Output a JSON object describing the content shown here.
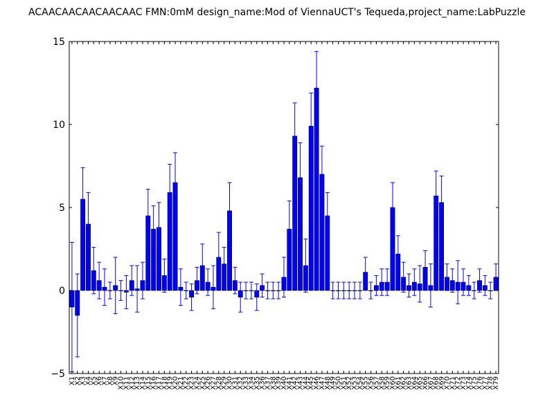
{
  "chart_data": {
    "type": "bar",
    "title": "ACAACAACAACAACAAC  FMN:0mM  design_name:Mod of ViennaUCT's Tequeda,project_name:LabPuzzle",
    "xlabel": "",
    "ylabel": "",
    "ylim": [
      -5,
      15
    ],
    "yticks": [
      -5,
      0,
      5,
      10,
      15
    ],
    "grid": false,
    "bar_color": "#0000ff",
    "error_color": "#0000ff",
    "categories": [
      "X1",
      "X2",
      "X3",
      "X4",
      "X5",
      "X6",
      "X7",
      "X8",
      "X9",
      "X10",
      "X11",
      "X12",
      "X13",
      "X14",
      "X15",
      "X16",
      "X17",
      "X18",
      "X19",
      "X20",
      "X21",
      "X22",
      "X23",
      "X24",
      "X25",
      "X26",
      "X27",
      "X28",
      "X29",
      "X30",
      "X31",
      "X32",
      "X33",
      "X34",
      "X35",
      "X36",
      "X37",
      "X38",
      "X39",
      "X40",
      "X41",
      "X42",
      "X43",
      "X44",
      "X45",
      "X46",
      "X47",
      "X48",
      "X49",
      "X50",
      "X51",
      "X52",
      "X53",
      "X54",
      "X55",
      "X56",
      "X57",
      "X58",
      "X59",
      "X60",
      "X61",
      "X62",
      "X63",
      "X64",
      "X65",
      "X66",
      "X67",
      "X68",
      "X69",
      "X70",
      "X71",
      "X72",
      "X73",
      "X74",
      "X75",
      "X76",
      "X77",
      "X78",
      "X79"
    ],
    "values": [
      -1.0,
      -1.5,
      5.5,
      4.0,
      1.2,
      0.6,
      0.2,
      0.0,
      0.3,
      0.0,
      -0.1,
      0.6,
      0.1,
      0.6,
      4.5,
      3.7,
      3.8,
      0.9,
      5.9,
      6.5,
      0.2,
      0.0,
      -0.4,
      0.6,
      1.5,
      0.5,
      0.2,
      2.0,
      1.6,
      4.8,
      0.6,
      -0.4,
      0.0,
      0.0,
      -0.4,
      0.3,
      0.0,
      0.0,
      0.0,
      0.8,
      3.7,
      9.3,
      6.8,
      1.5,
      9.9,
      12.2,
      7.0,
      4.5,
      0.0,
      0.0,
      0.0,
      0.0,
      0.0,
      0.0,
      1.1,
      0.0,
      0.3,
      0.5,
      0.5,
      5.0,
      2.2,
      0.8,
      0.3,
      0.5,
      0.4,
      1.4,
      0.3,
      5.7,
      5.3,
      0.8,
      0.6,
      0.5,
      0.5,
      0.3,
      0.0,
      0.6,
      0.3,
      0.0,
      0.8
    ],
    "errors": [
      3.9,
      2.5,
      1.9,
      1.9,
      1.4,
      1.1,
      1.1,
      0.5,
      1.7,
      0.6,
      1.0,
      0.9,
      1.4,
      1.1,
      1.6,
      1.4,
      1.5,
      1.0,
      1.7,
      1.8,
      1.1,
      0.5,
      0.8,
      0.8,
      1.3,
      0.8,
      1.3,
      1.5,
      1.0,
      1.7,
      0.8,
      0.9,
      0.5,
      0.5,
      0.8,
      0.7,
      0.5,
      0.5,
      0.5,
      1.2,
      1.7,
      2.0,
      2.1,
      1.6,
      2.0,
      2.2,
      1.7,
      1.4,
      0.5,
      0.5,
      0.5,
      0.5,
      0.5,
      0.5,
      0.9,
      0.5,
      0.6,
      0.8,
      0.8,
      1.5,
      1.1,
      0.9,
      0.7,
      0.8,
      1.1,
      1.0,
      1.3,
      1.5,
      1.6,
      0.8,
      0.7,
      1.3,
      0.8,
      0.6,
      0.5,
      0.7,
      0.6,
      0.5,
      0.8
    ]
  }
}
